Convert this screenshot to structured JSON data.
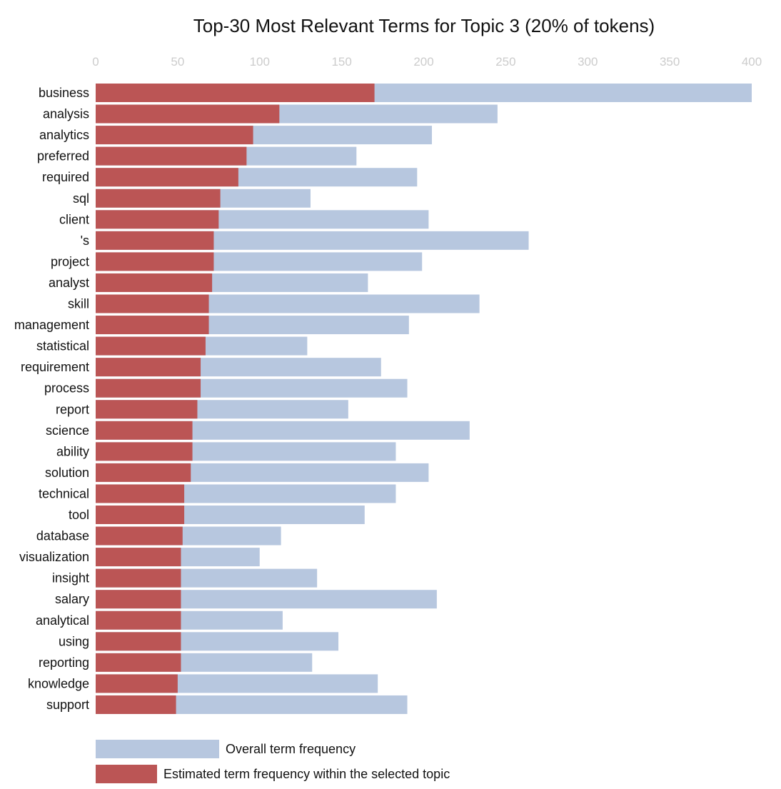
{
  "chart_data": {
    "type": "bar",
    "orientation": "horizontal",
    "stacking": "overlay",
    "title": "Top-30 Most Relevant Terms for Topic 3 (20% of tokens)",
    "xlim": [
      0,
      400
    ],
    "xticks": [
      "0",
      "50",
      "100",
      "150",
      "200",
      "250",
      "300",
      "350",
      "400"
    ],
    "categories": [
      "business",
      "analysis",
      "analytics",
      "preferred",
      "required",
      "sql",
      "client",
      "'s",
      "project",
      "analyst",
      "skill",
      "management",
      "statistical",
      "requirement",
      "process",
      "report",
      "science",
      "ability",
      "solution",
      "technical",
      "tool",
      "database",
      "visualization",
      "insight",
      "salary",
      "analytical",
      "using",
      "reporting",
      "knowledge",
      "support"
    ],
    "series": [
      {
        "name": "Overall term frequency",
        "color": "#b7c7df",
        "values": [
          400,
          245,
          205,
          159,
          196,
          131,
          203,
          264,
          199,
          166,
          234,
          191,
          129,
          174,
          190,
          154,
          228,
          183,
          203,
          183,
          164,
          113,
          100,
          135,
          208,
          114,
          148,
          132,
          172,
          190
        ]
      },
      {
        "name": "Estimated term frequency within the selected topic",
        "color": "#bb5555",
        "values": [
          170,
          112,
          96,
          92,
          87,
          76,
          75,
          72,
          72,
          71,
          69,
          69,
          67,
          64,
          64,
          62,
          59,
          59,
          58,
          54,
          54,
          53,
          52,
          52,
          52,
          52,
          52,
          52,
          50,
          49
        ]
      }
    ],
    "legend_position": "bottom-left",
    "grid": false
  }
}
